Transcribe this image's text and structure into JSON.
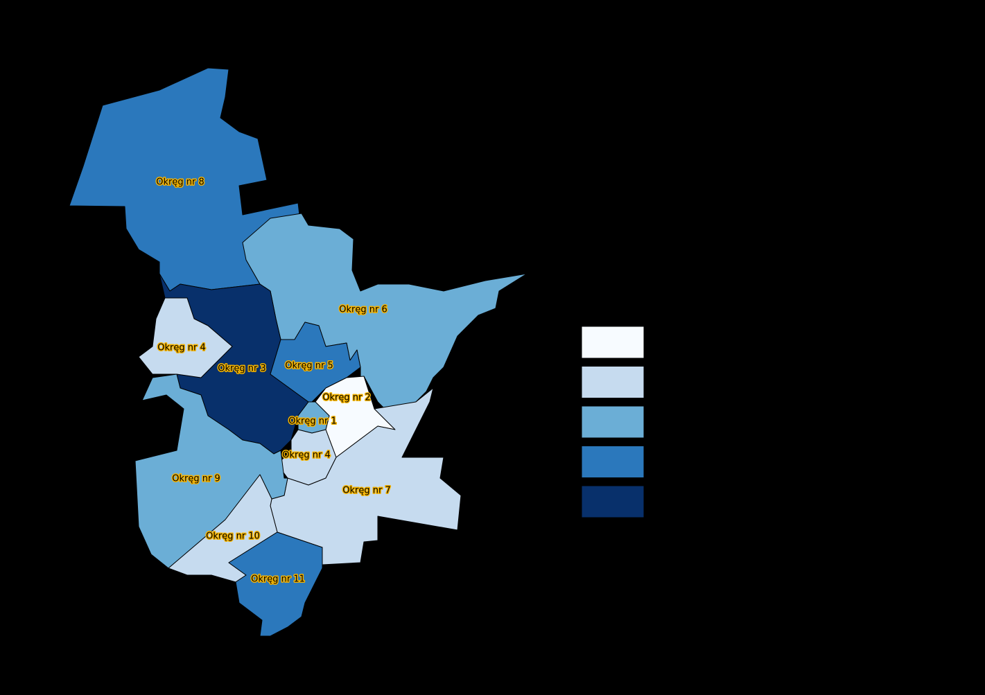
{
  "regions": [
    {
      "label": "Okręg nr 8",
      "color": "#2b78bc"
    },
    {
      "label": "Okręg nr 6",
      "color": "#6baed6"
    },
    {
      "label": "Okręg nr 3",
      "color": "#08306b"
    },
    {
      "label": "Okręg nr 4",
      "color": "#c6dbef"
    },
    {
      "label": "Okręg nr 5",
      "color": "#2b78bc"
    },
    {
      "label": "Okręg nr 2",
      "color": "#f7fbff"
    },
    {
      "label": "Okręg nr 1",
      "color": "#6baed6"
    },
    {
      "label": "Okręg nr 4",
      "color": "#c6dbef"
    },
    {
      "label": "Okręg nr 7",
      "color": "#c6dbef"
    },
    {
      "label": "Okręg nr 9",
      "color": "#6baed6"
    },
    {
      "label": "Okręg nr 10",
      "color": "#c6dbef"
    },
    {
      "label": "Okręg nr 11",
      "color": "#2b78bc"
    }
  ],
  "legend": {
    "colors": [
      "#f7fbff",
      "#c6dbef",
      "#6baed6",
      "#2b78bc",
      "#08306b"
    ]
  }
}
